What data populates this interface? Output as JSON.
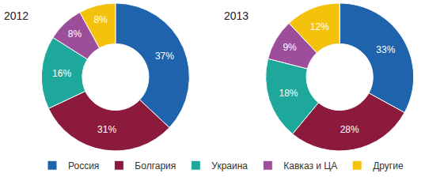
{
  "chart_data": [
    {
      "type": "pie",
      "title": "2012",
      "categories": [
        "Россия",
        "Болгария",
        "Украина",
        "Кавказ и ЦА",
        "Другие"
      ],
      "values": [
        37,
        31,
        16,
        8,
        8
      ],
      "value_labels": [
        "37%",
        "31%",
        "16%",
        "8%",
        "8%"
      ],
      "colors": [
        "#1f63ad",
        "#8c1a3c",
        "#1ea89b",
        "#9c4e9a",
        "#f4c20d"
      ],
      "data_labels": true,
      "legend": "bottom"
    },
    {
      "type": "pie",
      "title": "2013",
      "categories": [
        "Россия",
        "Болгария",
        "Украина",
        "Кавказ и ЦА",
        "Другие"
      ],
      "values": [
        33,
        28,
        18,
        9,
        12
      ],
      "value_labels": [
        "33%",
        "28%",
        "18%",
        "9%",
        "12%"
      ],
      "colors": [
        "#1f63ad",
        "#8c1a3c",
        "#1ea89b",
        "#9c4e9a",
        "#f4c20d"
      ],
      "data_labels": true,
      "legend": "bottom"
    }
  ]
}
